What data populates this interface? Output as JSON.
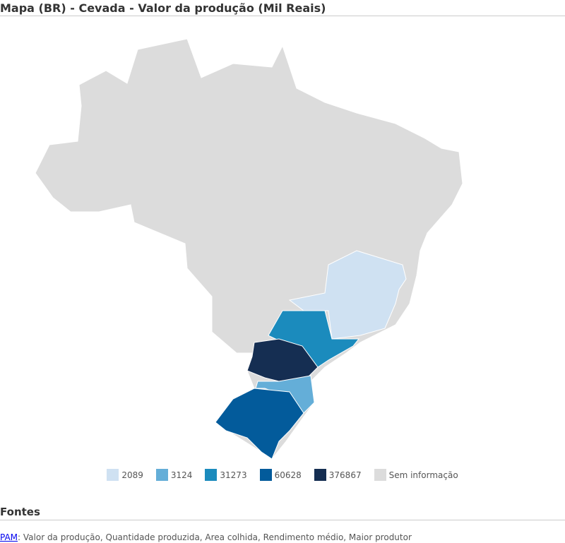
{
  "header": {
    "title": "Mapa (BR) - Cevada - Valor da produção (Mil Reais)"
  },
  "legend": [
    {
      "value": 2089,
      "color": "#cfe1f2"
    },
    {
      "value": 3124,
      "color": "#64aed8"
    },
    {
      "value": 31273,
      "color": "#1b8bbd"
    },
    {
      "value": 60628,
      "color": "#035b9b"
    },
    {
      "value": 376867,
      "color": "#152e52"
    },
    {
      "label": "Sem informação",
      "color": "#dcdcdc"
    }
  ],
  "footer": {
    "heading": "Fontes",
    "link": "PAM",
    "text": ": Valor da produção, Quantidade produzida, Area colhida, Rendimento médio, Maior produtor"
  }
}
